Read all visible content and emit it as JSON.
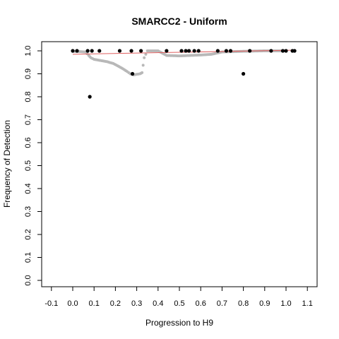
{
  "chart_data": {
    "type": "scatter",
    "title": "SMARCC2 - Uniform",
    "xlabel": "Progression to H9",
    "ylabel": "Frequency of Detection",
    "xlim": [
      -0.1,
      1.1
    ],
    "ylim": [
      0.0,
      1.0
    ],
    "x_ticks": [
      -0.1,
      0.0,
      0.1,
      0.2,
      0.3,
      0.4,
      0.5,
      0.6,
      0.7,
      0.8,
      0.9,
      1.0,
      1.1
    ],
    "y_ticks": [
      0.0,
      0.1,
      0.2,
      0.3,
      0.4,
      0.5,
      0.6,
      0.7,
      0.8,
      0.9,
      1.0
    ],
    "x_tick_labels": [
      "-0.1",
      "0.0",
      "0.1",
      "0.2",
      "0.3",
      "0.4",
      "0.5",
      "0.6",
      "0.7",
      "0.8",
      "0.9",
      "1.0",
      "1.1"
    ],
    "y_tick_labels": [
      "0.0",
      "0.1",
      "0.2",
      "0.3",
      "0.4",
      "0.5",
      "0.6",
      "0.7",
      "0.8",
      "0.9",
      "1.0"
    ],
    "colors": {
      "observed": "#000000",
      "smoothed": "#b8b8b8",
      "fit": "#e06060"
    },
    "series": [
      {
        "kind": "points",
        "color": "#000000",
        "points": [
          [
            0.0,
            1.0
          ],
          [
            0.02,
            1.0
          ],
          [
            0.07,
            1.0
          ],
          [
            0.09,
            1.0
          ],
          [
            0.125,
            1.0
          ],
          [
            0.08,
            0.8
          ],
          [
            0.22,
            1.0
          ],
          [
            0.275,
            1.0
          ],
          [
            0.28,
            0.9
          ],
          [
            0.32,
            1.0
          ],
          [
            0.44,
            1.0
          ],
          [
            0.51,
            1.0
          ],
          [
            0.53,
            1.0
          ],
          [
            0.545,
            1.0
          ],
          [
            0.57,
            1.0
          ],
          [
            0.59,
            1.0
          ],
          [
            0.68,
            1.0
          ],
          [
            0.72,
            1.0
          ],
          [
            0.74,
            1.0
          ],
          [
            0.8,
            0.9
          ],
          [
            0.83,
            1.0
          ],
          [
            0.93,
            1.0
          ],
          [
            0.985,
            1.0
          ],
          [
            1.0,
            1.0
          ],
          [
            1.03,
            1.0
          ],
          [
            1.04,
            1.0
          ]
        ]
      },
      {
        "kind": "smoothed",
        "color": "#b8b8b8",
        "points": [
          [
            0.0,
            0.998
          ],
          [
            0.03,
            0.997
          ],
          [
            0.06,
            0.995
          ],
          [
            0.075,
            0.98
          ],
          [
            0.085,
            0.97
          ],
          [
            0.1,
            0.963
          ],
          [
            0.13,
            0.958
          ],
          [
            0.16,
            0.953
          ],
          [
            0.19,
            0.945
          ],
          [
            0.21,
            0.935
          ],
          [
            0.235,
            0.922
          ],
          [
            0.255,
            0.91
          ],
          [
            0.27,
            0.9
          ],
          [
            0.285,
            0.895
          ],
          [
            0.3,
            0.898
          ],
          [
            0.315,
            0.9
          ],
          [
            0.325,
            0.905
          ],
          [
            0.335,
            0.97
          ],
          [
            0.35,
            1.0
          ],
          [
            0.4,
            1.0
          ],
          [
            0.44,
            0.98
          ],
          [
            0.5,
            0.978
          ],
          [
            0.55,
            0.98
          ],
          [
            0.6,
            0.982
          ],
          [
            0.65,
            0.985
          ],
          [
            0.7,
            0.995
          ],
          [
            0.8,
            0.998
          ],
          [
            0.9,
            1.0
          ],
          [
            1.0,
            1.0
          ]
        ]
      },
      {
        "kind": "fit",
        "color": "#e06060",
        "points": [
          [
            0.0,
            0.985
          ],
          [
            1.04,
            1.003
          ]
        ]
      }
    ]
  }
}
